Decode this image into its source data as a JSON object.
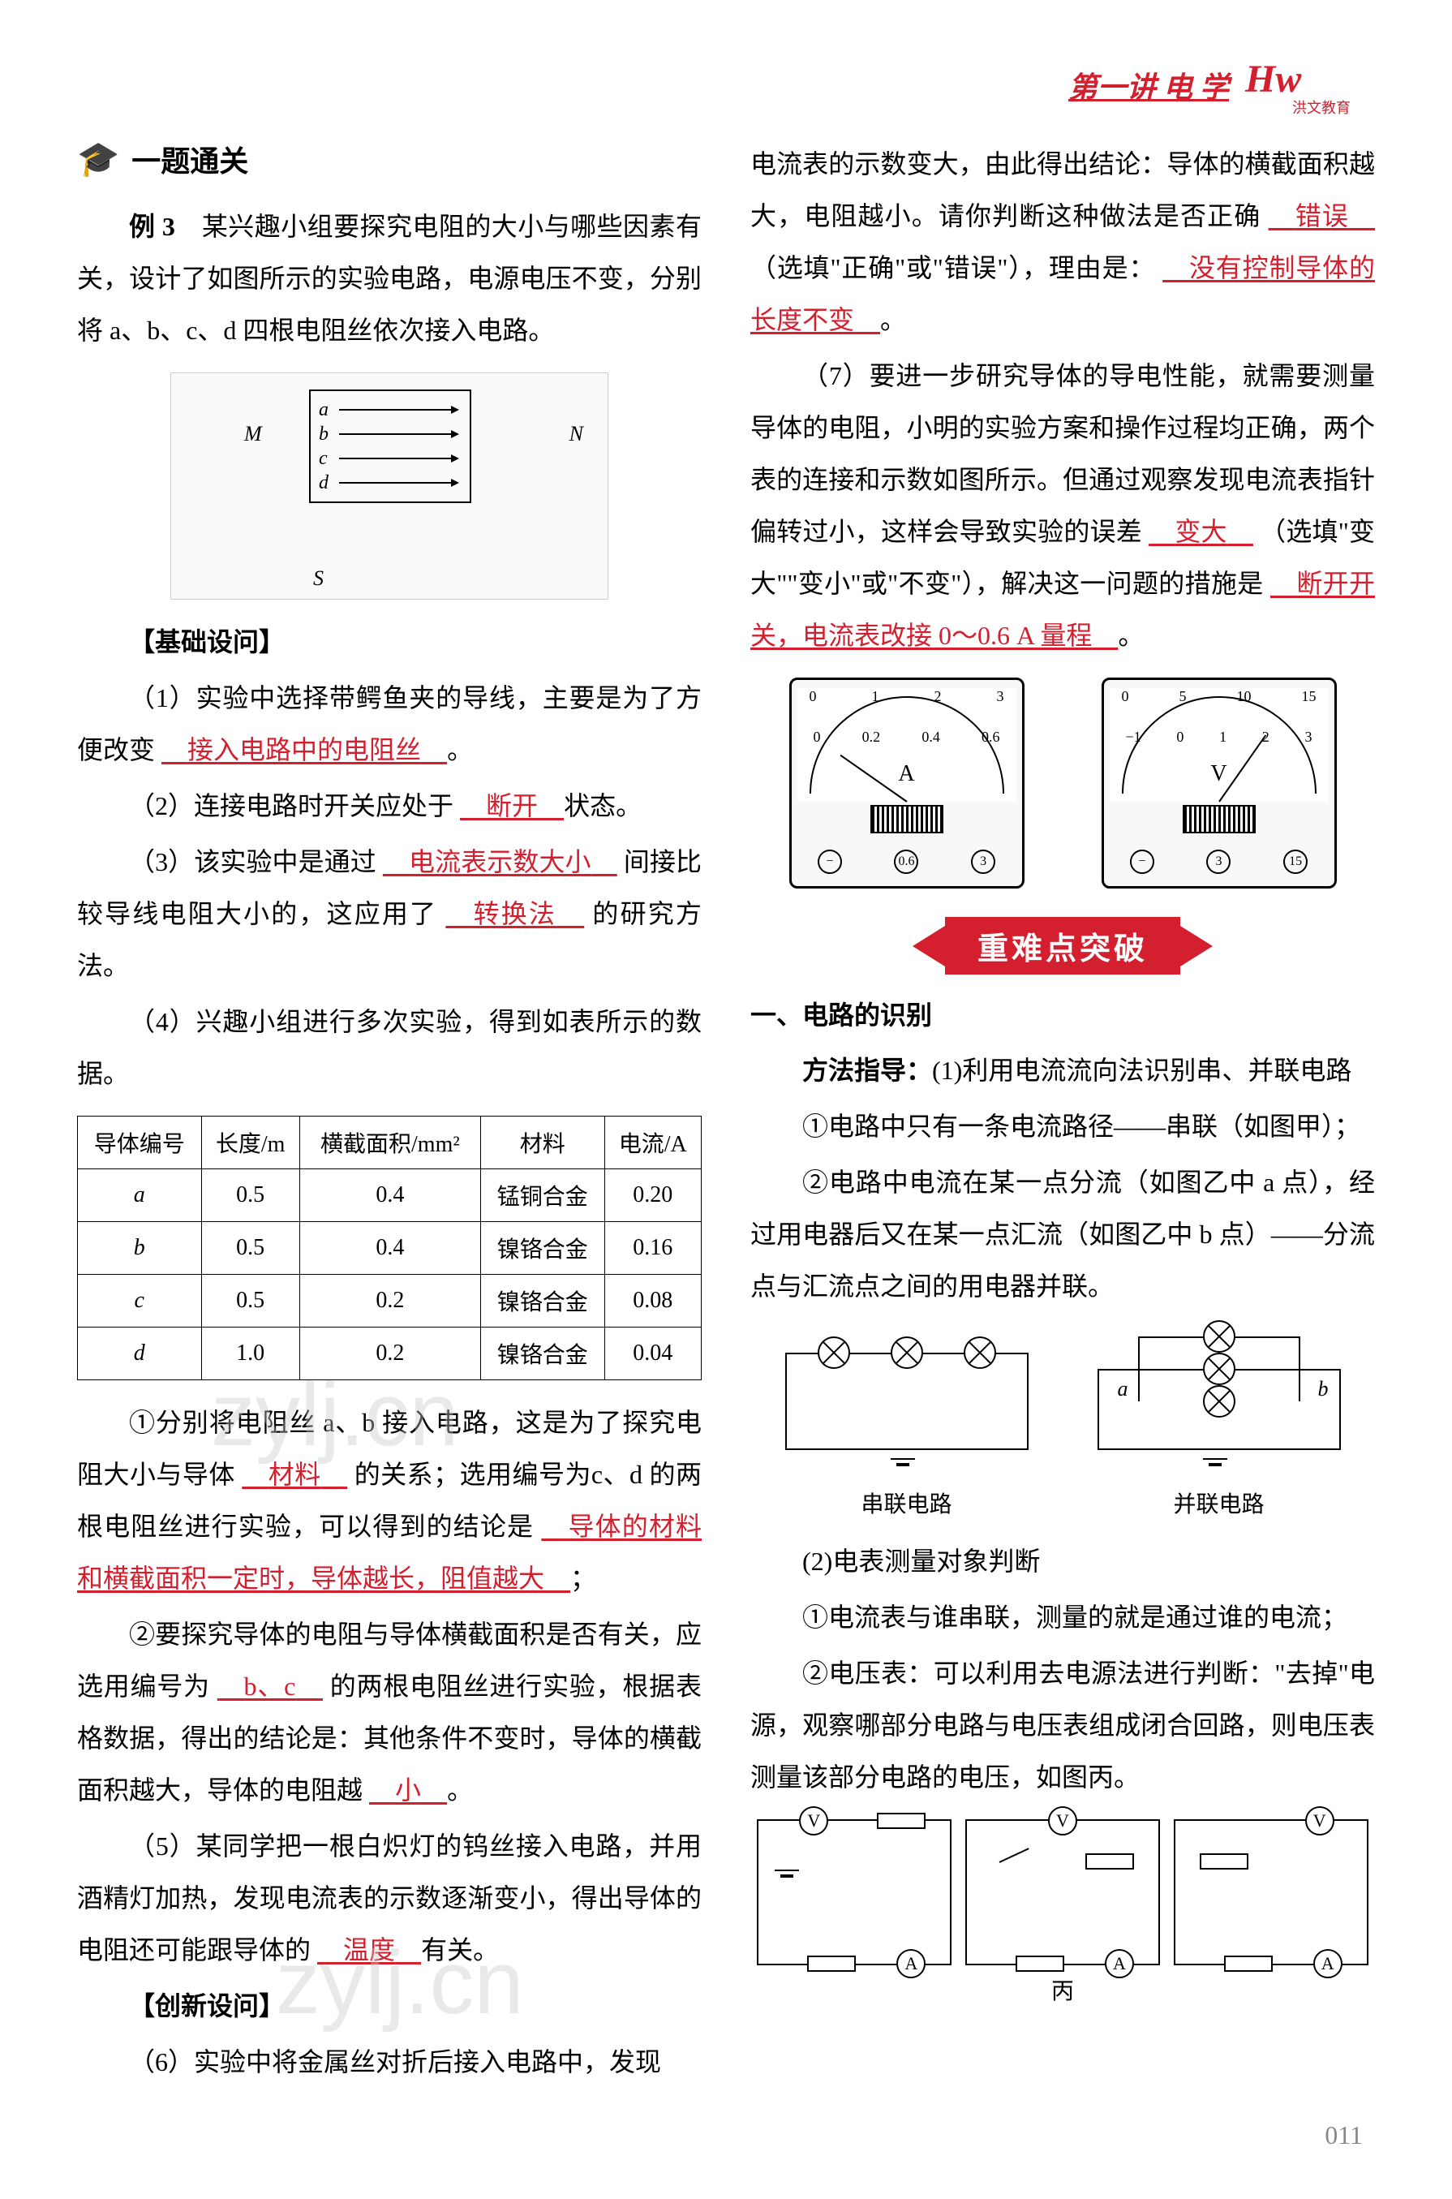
{
  "header": {
    "chapter": "第一讲  电  学",
    "logo_main": "Hw",
    "logo_sub": "洪文教育"
  },
  "section_title": "一题通关",
  "example_label": "例 3",
  "example_intro": "某兴趣小组要探究电阻的大小与哪些因素有关，设计了如图所示的实验电路，电源电压不变，分别将 a、b、c、d 四根电阻丝依次接入电路。",
  "diagram1": {
    "labels": [
      "a",
      "b",
      "c",
      "d"
    ],
    "terminal_m": "M",
    "terminal_n": "N",
    "switch_label": "S"
  },
  "basic_questions_label": "【基础设问】",
  "q1_pre": "（1）实验中选择带鳄鱼夹的导线，主要是为了方便改变",
  "q1_answer": "接入电路中的电阻丝",
  "q1_post": "。",
  "q2_pre": "（2）连接电路时开关应处于",
  "q2_answer": "断开",
  "q2_post": "状态。",
  "q3_pre": "（3）该实验中是通过",
  "q3_answer1": "电流表示数大小",
  "q3_mid": "间接比较导线电阻大小的，这应用了",
  "q3_answer2": "转换法",
  "q3_post": "的研究方法。",
  "q4": "（4）兴趣小组进行多次实验，得到如表所示的数据。",
  "table": {
    "headers": [
      "导体编号",
      "长度/m",
      "横截面积/mm²",
      "材料",
      "电流/A"
    ],
    "rows": [
      [
        "a",
        "0.5",
        "0.4",
        "锰铜合金",
        "0.20"
      ],
      [
        "b",
        "0.5",
        "0.4",
        "镍铬合金",
        "0.16"
      ],
      [
        "c",
        "0.5",
        "0.2",
        "镍铬合金",
        "0.08"
      ],
      [
        "d",
        "1.0",
        "0.2",
        "镍铬合金",
        "0.04"
      ]
    ]
  },
  "q41_pre": "①分别将电阻丝 a、b 接入电路，这是为了探究电阻大小与导体",
  "q41_answer1": "材料",
  "q41_mid": "的关系；选用编号为c、d 的两根电阻丝进行实验，可以得到的结论是",
  "q41_answer2": "导体的材料和横截面积一定时，导体越长，阻值越大",
  "q41_post": "；",
  "q42_pre": "②要探究导体的电阻与导体横截面积是否有关，应选用编号为",
  "q42_answer1": "b、c",
  "q42_mid": "的两根电阻丝进行实验，根据表格数据，得出的结论是：其他条件不变时，导体的横截面积越大，导体的电阻越",
  "q42_answer2": "小",
  "q42_post": "。",
  "q5_pre": "（5）某同学把一根白炽灯的钨丝接入电路，并用酒精灯加热，发现电流表的示数逐渐变小，得出导体的电阻还可能跟导体的",
  "q5_answer": "温度",
  "q5_post": "有关。",
  "innovation_label": "【创新设问】",
  "q6_pre": "（6）实验中将金属丝对折后接入电路中，发现",
  "q6_next": "电流表的示数变大，由此得出结论：导体的横截面积越大，电阻越小。请你判断这种做法是否正确",
  "q6_answer1": "错误",
  "q6_mid": "（选填\"正确\"或\"错误\"），理由是：",
  "q6_answer2": "没有控制导体的长度不变",
  "q6_post": "。",
  "q7_pre": "（7）要进一步研究导体的导电性能，就需要测量导体的电阻，小明的实验方案和操作过程均正确，两个表的连接和示数如图所示。但通过观察发现电流表指针偏转过小，这样会导致实验的误差",
  "q7_answer1": "变大",
  "q7_mid": "（选填\"变大\"\"变小\"或\"不变\"），解决这一问题的措施是",
  "q7_answer2": "断开开关，电流表改接 0～0.6 A 量程",
  "q7_post": "。",
  "meter_a": {
    "top_scale": [
      "0",
      "1",
      "2",
      "3"
    ],
    "bottom_scale": [
      "0",
      "0.2",
      "0.4",
      "0.6"
    ],
    "unit": "A",
    "terminals": [
      "−",
      "0.6",
      "3"
    ]
  },
  "meter_v": {
    "top_scale": [
      "0",
      "5",
      "10",
      "15"
    ],
    "bottom_scale": [
      "−1",
      "0",
      "1",
      "2",
      "3"
    ],
    "unit": "V",
    "terminals": [
      "−",
      "3",
      "15"
    ]
  },
  "banner": "重难点突破",
  "topic1_heading": "一、电路的识别",
  "method_label": "方法指导：",
  "method1_pre": "(1)利用电流流向法识别串、并联电路",
  "method1_1": "①电路中只有一条电流路径——串联（如图甲）；",
  "method1_2_pre": "②电路中电流在某一点分流（如图乙中 a 点），经过用电器后又在某一点汇流（如图乙中 b 点）——分流点与汇流点之间的用电器并联。",
  "series_label": "串联电路",
  "parallel_label": "并联电路",
  "parallel_a": "a",
  "parallel_b": "b",
  "method2_pre": "(2)电表测量对象判断",
  "method2_1": "①电流表与谁串联，测量的就是通过谁的电流；",
  "method2_2": "②电压表：可以利用去电源法进行判断：\"去掉\"电源，观察哪部分电路与电压表组成闭合回路，则电压表测量该部分电路的电压，如图丙。",
  "circuit_label_bing": "丙",
  "page_number": "011",
  "watermark": "zylj.cn",
  "colors": {
    "accent": "#d41f2e",
    "answer_color": "#d41f2e",
    "text": "#000000",
    "bg": "#ffffff"
  }
}
